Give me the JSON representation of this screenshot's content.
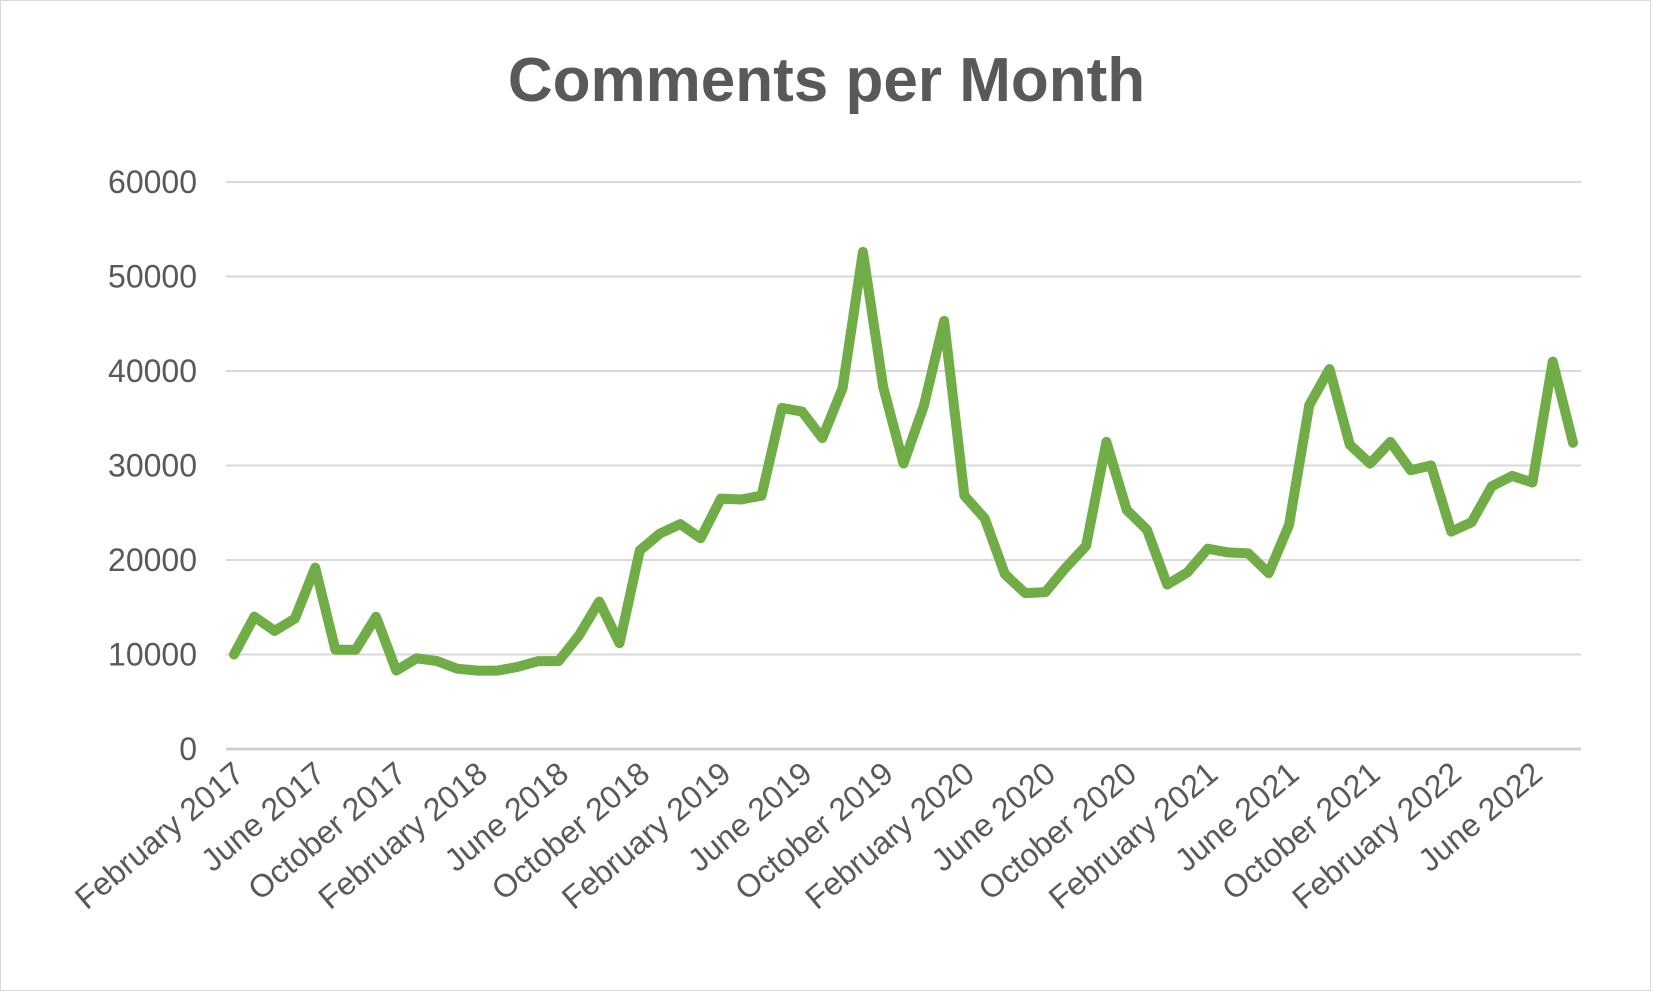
{
  "chart_data": {
    "type": "line",
    "title": "Comments per Month",
    "xlabel": "",
    "ylabel": "",
    "ylim": [
      0,
      60000
    ],
    "yticks": [
      0,
      10000,
      20000,
      30000,
      40000,
      50000,
      60000
    ],
    "grid": true,
    "legend": "none",
    "line_color": "#70ad47",
    "categories": [
      "February 2017",
      "March 2017",
      "April 2017",
      "May 2017",
      "June 2017",
      "July 2017",
      "August 2017",
      "September 2017",
      "October 2017",
      "November 2017",
      "December 2017",
      "January 2018",
      "February 2018",
      "March 2018",
      "April 2018",
      "May 2018",
      "June 2018",
      "July 2018",
      "August 2018",
      "September 2018",
      "October 2018",
      "November 2018",
      "December 2018",
      "January 2019",
      "February 2019",
      "March 2019",
      "April 2019",
      "May 2019",
      "June 2019",
      "July 2019",
      "August 2019",
      "September 2019",
      "October 2019",
      "November 2019",
      "December 2019",
      "January 2020",
      "February 2020",
      "March 2020",
      "April 2020",
      "May 2020",
      "June 2020",
      "July 2020",
      "August 2020",
      "September 2020",
      "October 2020",
      "November 2020",
      "December 2020",
      "January 2021",
      "February 2021",
      "March 2021",
      "April 2021",
      "May 2021",
      "June 2021",
      "July 2021",
      "August 2021",
      "September 2021",
      "October 2021",
      "November 2021",
      "December 2021",
      "January 2022",
      "February 2022",
      "March 2022",
      "April 2022",
      "May 2022",
      "June 2022",
      "July 2022",
      "August 2022"
    ],
    "tick_labels": [
      "February 2017",
      "June 2017",
      "October 2017",
      "February 2018",
      "June 2018",
      "October 2018",
      "February 2019",
      "June 2019",
      "October 2019",
      "February 2020",
      "June 2020",
      "October 2020",
      "February 2021",
      "June 2021",
      "October 2021",
      "February 2022",
      "June 2022"
    ],
    "values": [
      10000,
      14000,
      12500,
      13800,
      19200,
      10500,
      10500,
      14000,
      8300,
      9600,
      9300,
      8500,
      8300,
      8300,
      8700,
      9300,
      9300,
      12000,
      15600,
      11200,
      21000,
      22800,
      23800,
      22300,
      26500,
      26400,
      26800,
      36100,
      35700,
      32900,
      38200,
      52600,
      38300,
      30200,
      36300,
      45300,
      26800,
      24400,
      18500,
      16500,
      16600,
      19200,
      21500,
      32500,
      25300,
      23200,
      17400,
      18700,
      21200,
      20800,
      20700,
      18600,
      23700,
      36400,
      40200,
      32200,
      30200,
      32500,
      29500,
      30000,
      23000,
      24000,
      27800,
      28900,
      28200,
      41000,
      32400
    ]
  }
}
